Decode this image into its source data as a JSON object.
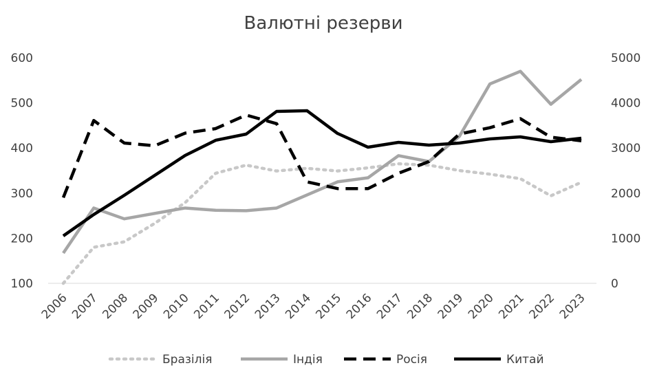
{
  "chart_data": {
    "type": "line",
    "title": "Валютні резерви",
    "categories": [
      "2006",
      "2007",
      "2008",
      "2009",
      "2010",
      "2011",
      "2012",
      "2013",
      "2014",
      "2015",
      "2016",
      "2017",
      "2018",
      "2019",
      "2020",
      "2021",
      "2022",
      "2023"
    ],
    "ylim": [
      100,
      600
    ],
    "yticks": [
      100,
      200,
      300,
      400,
      500,
      600
    ],
    "y2lim": [
      0,
      5000
    ],
    "y2ticks": [
      0,
      1000,
      2000,
      3000,
      4000,
      5000
    ],
    "legend": "bottom",
    "series": [
      {
        "name": "Бразілія",
        "color": "#c8c8c8",
        "dash": "dotted",
        "values": [
          100,
          180,
          192,
          233,
          279,
          344,
          362,
          349,
          355,
          349,
          356,
          365,
          362,
          350,
          342,
          332,
          294,
          324
        ]
      },
      {
        "name": "Індія",
        "color": "#a6a6a6",
        "dash": "solid",
        "values": [
          167,
          267,
          243,
          255,
          267,
          262,
          261,
          267,
          296,
          325,
          334,
          383,
          370,
          426,
          542,
          570,
          497,
          552
        ]
      },
      {
        "name": "Росія",
        "color": "#000000",
        "dash": "dashed",
        "values": [
          290,
          461,
          411,
          405,
          433,
          443,
          473,
          454,
          325,
          310,
          310,
          344,
          370,
          431,
          445,
          465,
          424,
          416
        ]
      },
      {
        "name": "Китай",
        "color": "#000000",
        "dash": "solid",
        "axis": "y2",
        "values": [
          1052,
          1525,
          1951,
          2393,
          2835,
          3171,
          3308,
          3811,
          3826,
          3323,
          3018,
          3125,
          3064,
          3110,
          3201,
          3247,
          3140,
          3216
        ]
      }
    ]
  }
}
